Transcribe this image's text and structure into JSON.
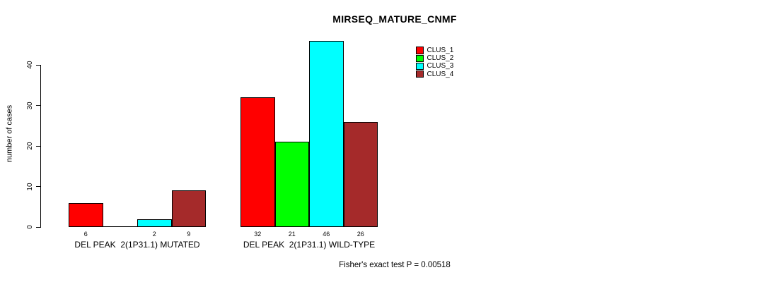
{
  "chart_data": {
    "type": "bar",
    "title": "MIRSEQ_MATURE_CNMF",
    "ylabel": "number of cases",
    "xlabel": "",
    "yticks": [
      0,
      10,
      20,
      30,
      40
    ],
    "ylim": [
      0,
      46
    ],
    "grid": false,
    "background": "#ffffff",
    "bar_border_color": "#000000",
    "categories": [
      "DEL PEAK  2(1P31.1) MUTATED",
      "DEL PEAK  2(1P31.1) WILD-TYPE"
    ],
    "series": [
      {
        "name": "CLUS_1",
        "color": "#ff0000",
        "values": [
          6,
          32
        ]
      },
      {
        "name": "CLUS_2",
        "color": "#00ff00",
        "values": [
          0,
          21
        ]
      },
      {
        "name": "CLUS_3",
        "color": "#00ffff",
        "values": [
          2,
          46
        ]
      },
      {
        "name": "CLUS_4",
        "color": "#a52a2a",
        "values": [
          9,
          26
        ]
      }
    ],
    "bar_value_labels_shown": true,
    "zero_value_labels_hidden": true,
    "legend_position": "top-right",
    "legend_entries": [
      "CLUS_1",
      "CLUS_2",
      "CLUS_3",
      "CLUS_4"
    ],
    "footnote": "Fisher's exact test P = 0.00518"
  }
}
